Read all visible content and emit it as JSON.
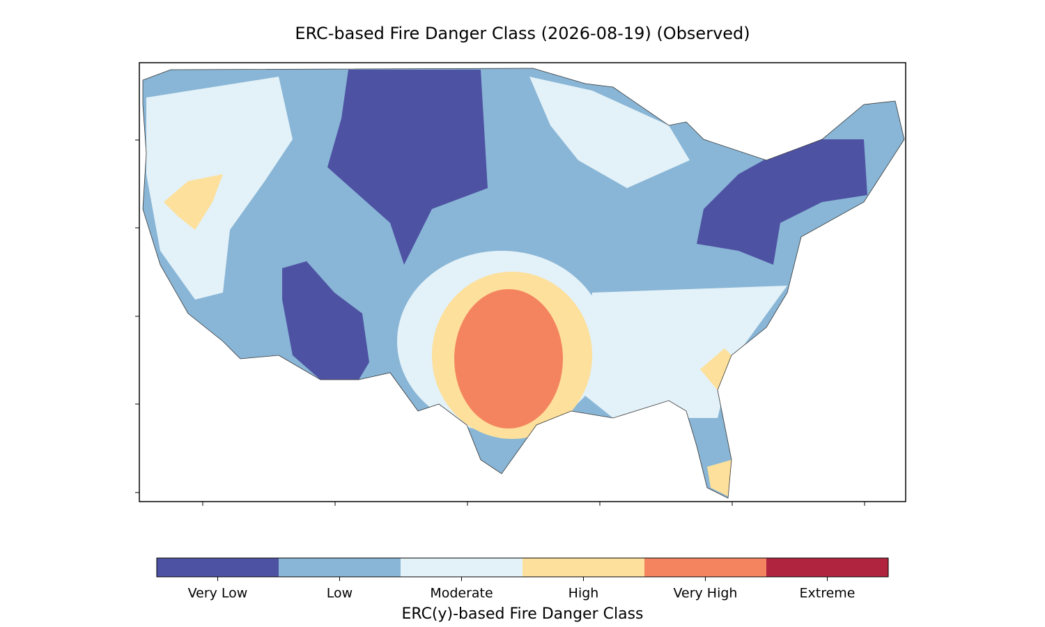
{
  "title": "ERC-based Fire Danger Class (2026-08-19) (Observed)",
  "colorbar": {
    "label": "ERC(y)-based Fire Danger Class",
    "classes": [
      {
        "name": "Very Low",
        "color": "#4e52a3"
      },
      {
        "name": "Low",
        "color": "#89b6d6"
      },
      {
        "name": "Moderate",
        "color": "#e3f1f8"
      },
      {
        "name": "High",
        "color": "#fde09b"
      },
      {
        "name": "Very High",
        "color": "#f4845f"
      },
      {
        "name": "Extreme",
        "color": "#b0243f"
      }
    ]
  }
}
